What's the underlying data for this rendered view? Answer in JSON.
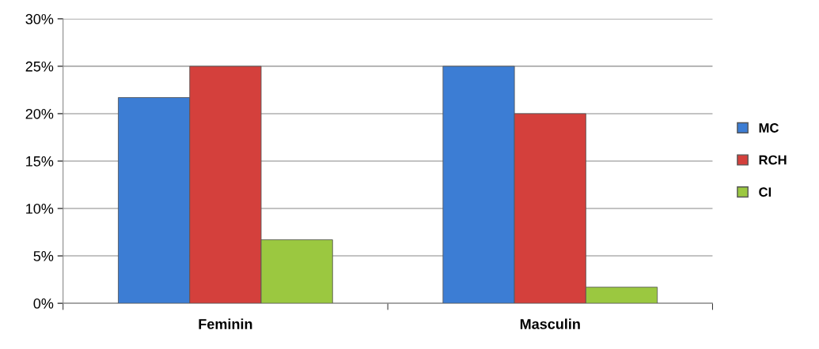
{
  "chart_data": {
    "type": "bar",
    "categories": [
      "Feminin",
      "Masculin"
    ],
    "series": [
      {
        "name": "MC",
        "color": "#3c7dd4",
        "values": [
          21.7,
          25
        ]
      },
      {
        "name": "RCH",
        "color": "#d4403c",
        "values": [
          25,
          20
        ]
      },
      {
        "name": "CI",
        "color": "#9bc840",
        "values": [
          6.7,
          1.7
        ]
      }
    ],
    "ylim": [
      0,
      30
    ],
    "yticks": [
      {
        "value": 0,
        "label": "0%"
      },
      {
        "value": 5,
        "label": "5%"
      },
      {
        "value": 10,
        "label": "10%"
      },
      {
        "value": 15,
        "label": "15%"
      },
      {
        "value": 20,
        "label": "20%"
      },
      {
        "value": 25,
        "label": "25%"
      },
      {
        "value": 30,
        "label": "30%"
      }
    ],
    "grid": "y",
    "legend": "right"
  }
}
